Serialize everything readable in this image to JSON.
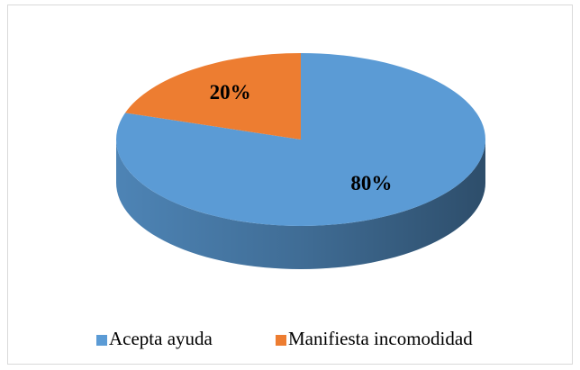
{
  "chart_data": {
    "type": "pie3d",
    "categories": [
      "Acepta ayuda",
      "Manifiesta incomodidad"
    ],
    "values": [
      80,
      20
    ],
    "value_labels": [
      "80%",
      "20%"
    ],
    "colors": [
      "#5b9bd5",
      "#ed7d31"
    ],
    "legend": "bottom"
  }
}
